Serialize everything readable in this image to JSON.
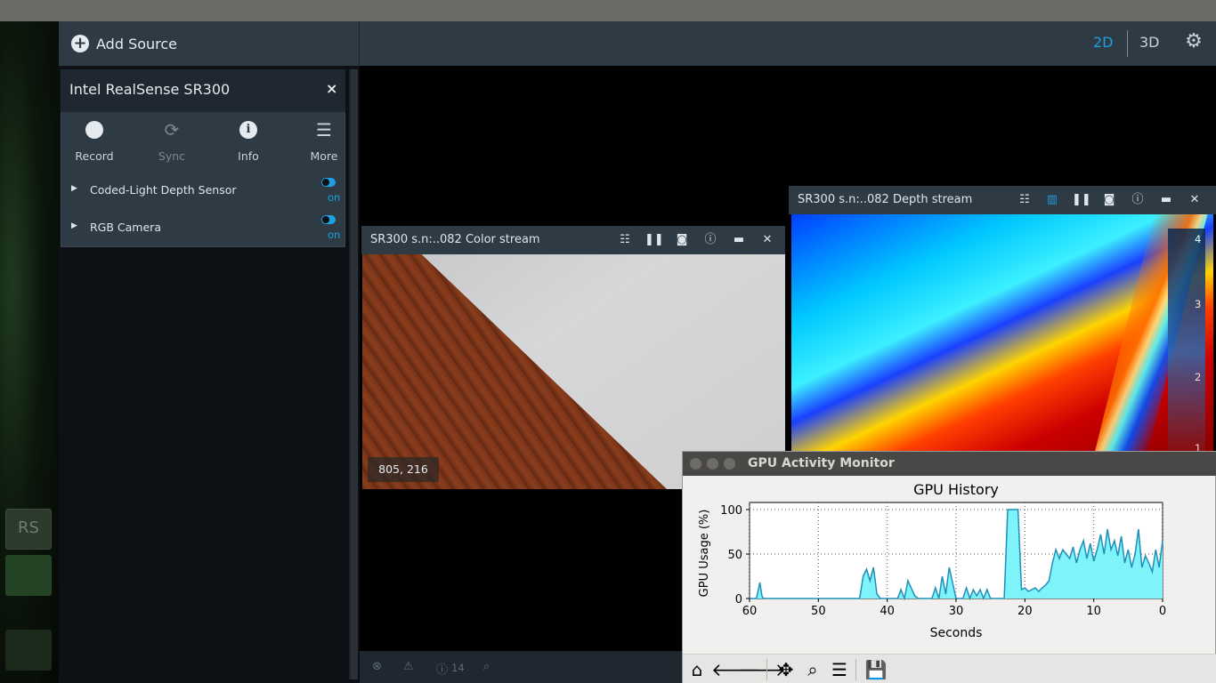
{
  "left_header": {
    "add_source_label": "Add Source"
  },
  "main_header": {
    "mode_2d": "2D",
    "mode_3d": "3D"
  },
  "desktop": {
    "dock_rs_label": "RS"
  },
  "device": {
    "name": "Intel RealSense SR300",
    "close_glyph": "×",
    "buttons": [
      {
        "label": "Record",
        "icon": "record-icon"
      },
      {
        "label": "Sync",
        "icon": "sync-icon"
      },
      {
        "label": "Info",
        "icon": "info-icon"
      },
      {
        "label": "More",
        "icon": "menu-icon"
      }
    ],
    "sensors": [
      {
        "label": "Coded-Light Depth Sensor",
        "state": "on"
      },
      {
        "label": "RGB Camera",
        "state": "on"
      }
    ]
  },
  "color_stream": {
    "title": "SR300 s.n:..082 Color stream",
    "coordinate": "805, 216"
  },
  "depth_stream": {
    "title": "SR300 s.n:..082 Depth stream",
    "legend_ticks": [
      "4",
      "3",
      "2",
      "1"
    ]
  },
  "status": {
    "info_count": "14"
  },
  "gpu_window": {
    "title": "GPU Activity Monitor",
    "accent": "#1f8fb8",
    "fill": "#7ef4fa"
  },
  "chart_data": {
    "type": "area",
    "title": "GPU History",
    "xlabel": "Seconds",
    "ylabel": "GPU Usage (%)",
    "xlim": [
      60,
      0
    ],
    "ylim": [
      0,
      100
    ],
    "xticks": [
      60,
      50,
      40,
      30,
      20,
      10,
      0
    ],
    "yticks": [
      0,
      50,
      100
    ],
    "grid": true,
    "x": [
      60,
      59,
      58.5,
      58.2,
      58,
      57,
      44,
      43.5,
      43,
      42.5,
      42,
      41.5,
      41,
      40,
      38.5,
      38,
      37.5,
      37,
      36,
      35.5,
      35,
      33.5,
      33,
      32.5,
      32,
      31.5,
      31,
      30,
      29,
      28.5,
      28,
      27.5,
      27,
      26.5,
      26,
      25.5,
      25,
      23,
      22.5,
      22,
      21.5,
      21,
      20.5,
      20,
      19.5,
      19,
      18.5,
      18,
      17.5,
      17,
      16.5,
      16,
      15.5,
      15,
      14.5,
      14,
      13.5,
      13,
      12.5,
      12,
      11.5,
      11,
      10.5,
      10,
      9.5,
      9,
      8.5,
      8,
      7.5,
      7,
      6.5,
      6,
      5.5,
      5,
      4.5,
      4,
      3.5,
      3,
      2.5,
      2,
      1.5,
      1,
      0.5,
      0
    ],
    "y": [
      0,
      0,
      18,
      3,
      0,
      0,
      0,
      25,
      33,
      20,
      35,
      5,
      0,
      0,
      0,
      10,
      0,
      20,
      3,
      0,
      0,
      0,
      12,
      0,
      25,
      5,
      35,
      0,
      0,
      12,
      0,
      10,
      3,
      10,
      0,
      10,
      0,
      0,
      100,
      100,
      100,
      100,
      10,
      12,
      8,
      10,
      12,
      8,
      12,
      15,
      20,
      40,
      55,
      45,
      55,
      50,
      45,
      58,
      40,
      55,
      65,
      45,
      62,
      42,
      55,
      72,
      50,
      78,
      55,
      65,
      48,
      70,
      40,
      55,
      35,
      50,
      78,
      35,
      48,
      40,
      30,
      55,
      35,
      65
    ]
  }
}
